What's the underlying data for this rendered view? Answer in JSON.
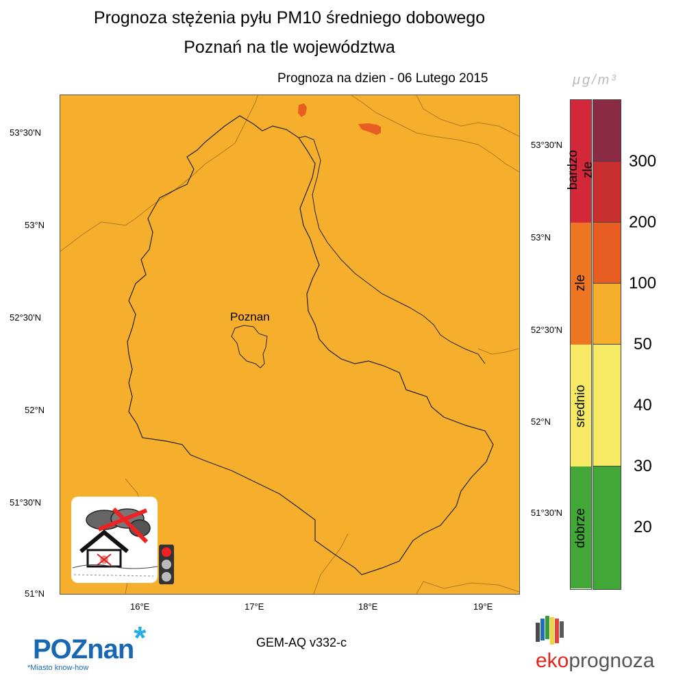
{
  "header": {
    "title_line1": "Prognoza stężenia pyłu PM10 średniego dobowego",
    "title_line2": "Poznań na tle województwa",
    "forecast_date": "Prognoza na dzien -  06 Lutego 2015"
  },
  "map": {
    "city_label": "Poznan",
    "lat_labels_left": [
      "53°30'N",
      "53°N",
      "52°30'N",
      "52°N",
      "51°30'N",
      "51°N"
    ],
    "lat_labels_right": [
      "53°30'N",
      "53°N",
      "52°30'N",
      "52°N",
      "51°30'N"
    ],
    "lon_labels": [
      "16°E",
      "17°E",
      "18°E",
      "19°E"
    ],
    "background_color": "#f6ae2d",
    "hotspot_color": "#e85d22"
  },
  "legend": {
    "unit": "μg/m³",
    "categories": [
      {
        "label": "bardzo zle",
        "color": "#d3283a"
      },
      {
        "label": "zle",
        "color": "#ee7622"
      },
      {
        "label": "srednio",
        "color": "#f6e963"
      },
      {
        "label": "dobrze",
        "color": "#41a838"
      }
    ],
    "levels": [
      {
        "value": "300",
        "color": "#8b2a45"
      },
      {
        "value": "200",
        "color": "#c8302f"
      },
      {
        "value": "100",
        "color": "#e85d22"
      },
      {
        "value": "50",
        "color": "#f6ae2d"
      },
      {
        "value": "40",
        "color": "#f6e963"
      },
      {
        "value": "30",
        "color": "#f6e963"
      },
      {
        "value": "20",
        "color": "#41a838"
      },
      {
        "value": "",
        "color": "#41a838"
      }
    ]
  },
  "footer": {
    "logo_text": "POZnan",
    "logo_asterisk": "*",
    "tagline": "*Miasto know-how",
    "model": "GEM-AQ v332-c",
    "brand_part1": "eko",
    "brand_part2": "prognoza"
  }
}
